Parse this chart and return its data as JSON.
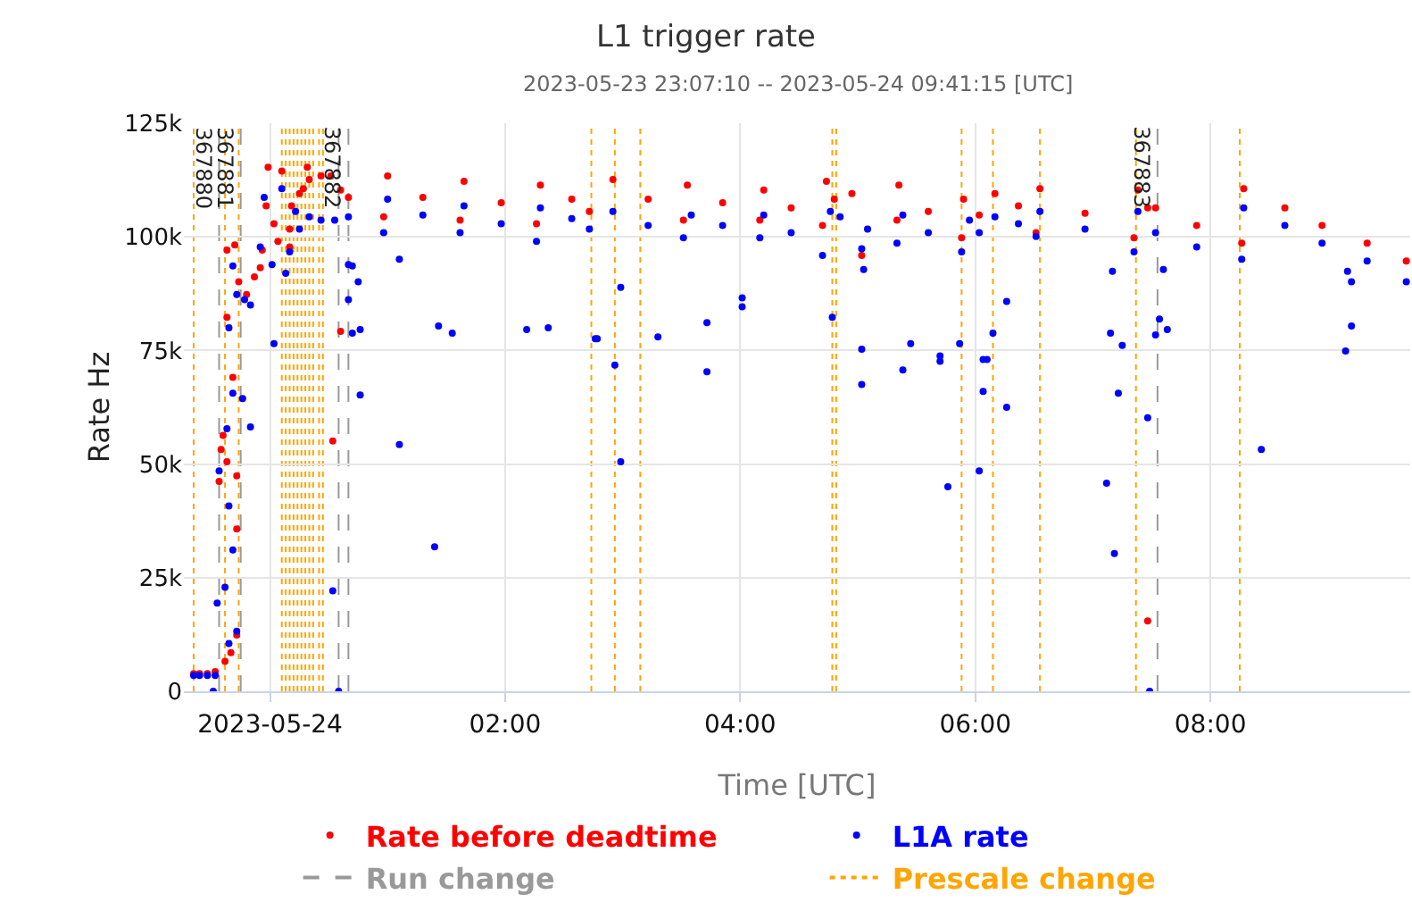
{
  "chart_data": {
    "type": "scatter",
    "title": "L1 trigger rate",
    "subtitle": "2023-05-23 23:07:10 -- 2023-05-24 09:41:15 [UTC]",
    "xlabel": "Time [UTC]",
    "ylabel": "Rate Hz",
    "xlim": [
      "2023-05-23T23:16",
      "2023-05-24T09:42"
    ],
    "xticks": [
      {
        "value": "2023-05-24T00:00",
        "label": "2023-05-24"
      },
      {
        "value": "2023-05-24T02:00",
        "label": "02:00"
      },
      {
        "value": "2023-05-24T04:00",
        "label": "04:00"
      },
      {
        "value": "2023-05-24T06:00",
        "label": "06:00"
      },
      {
        "value": "2023-05-24T08:00",
        "label": "08:00"
      }
    ],
    "ylim": [
      0,
      125000
    ],
    "yticks": [
      {
        "value": 0,
        "label": "0"
      },
      {
        "value": 25000,
        "label": "25k"
      },
      {
        "value": 50000,
        "label": "50k"
      },
      {
        "value": 75000,
        "label": "75k"
      },
      {
        "value": 100000,
        "label": "100k"
      },
      {
        "value": 125000,
        "label": "125k"
      }
    ],
    "grid": true,
    "legend": "bottom",
    "marker": "circle",
    "series": [
      {
        "name": "Rate before deadtime",
        "color": "#ff0000",
        "x": [
          "2023-05-23T23:21",
          "2023-05-23T23:24",
          "2023-05-23T23:28",
          "2023-05-23T23:32",
          "2023-05-23T23:37",
          "2023-05-23T23:40",
          "2023-05-23T23:43",
          "2023-05-23T23:34",
          "2023-05-23T23:35",
          "2023-05-23T23:36",
          "2023-05-23T23:38",
          "2023-05-23T23:43",
          "2023-05-23T23:43",
          "2023-05-23T23:41",
          "2023-05-23T23:38",
          "2023-05-23T23:38",
          "2023-05-23T23:42",
          "2023-05-23T23:44",
          "2023-05-23T23:48",
          "2023-05-23T23:52",
          "2023-05-23T23:55",
          "2023-05-23T23:56",
          "2023-05-23T23:58",
          "2023-05-23T23:59",
          "2023-05-24T00:02",
          "2023-05-24T00:04",
          "2023-05-24T00:06",
          "2023-05-24T00:10",
          "2023-05-24T00:10",
          "2023-05-24T00:11",
          "2023-05-24T00:15",
          "2023-05-24T00:17",
          "2023-05-24T00:19",
          "2023-05-24T00:20",
          "2023-05-24T00:26",
          "2023-05-24T00:31",
          "2023-05-24T00:32",
          "2023-05-24T00:36",
          "2023-05-24T00:36",
          "2023-05-24T00:40",
          "2023-05-24T00:58",
          "2023-05-24T01:00",
          "2023-05-24T01:18",
          "2023-05-24T01:37",
          "2023-05-24T01:39",
          "2023-05-24T01:58",
          "2023-05-24T02:16",
          "2023-05-24T02:18",
          "2023-05-24T02:34",
          "2023-05-24T02:43",
          "2023-05-24T02:55",
          "2023-05-24T03:13",
          "2023-05-24T03:31",
          "2023-05-24T03:33",
          "2023-05-24T03:51",
          "2023-05-24T04:10",
          "2023-05-24T04:12",
          "2023-05-24T04:26",
          "2023-05-24T04:42",
          "2023-05-24T04:44",
          "2023-05-24T04:48",
          "2023-05-24T04:57",
          "2023-05-24T05:02",
          "2023-05-24T05:20",
          "2023-05-24T05:21",
          "2023-05-24T05:36",
          "2023-05-24T05:53",
          "2023-05-24T05:54",
          "2023-05-24T06:02",
          "2023-05-24T06:10",
          "2023-05-24T06:22",
          "2023-05-24T06:31",
          "2023-05-24T06:33",
          "2023-05-24T06:56",
          "2023-05-24T07:21",
          "2023-05-24T07:23",
          "2023-05-24T07:28",
          "2023-05-24T07:28",
          "2023-05-24T07:32",
          "2023-05-24T07:53",
          "2023-05-24T08:16",
          "2023-05-24T08:17",
          "2023-05-24T08:38",
          "2023-05-24T08:57",
          "2023-05-24T09:20",
          "2023-05-24T09:40"
        ],
        "values": [
          3900,
          3900,
          3900,
          4300,
          6600,
          8500,
          12400,
          46200,
          53200,
          56300,
          50500,
          47400,
          35700,
          69100,
          82300,
          97100,
          98200,
          90100,
          87300,
          91200,
          93200,
          97100,
          106800,
          115300,
          102900,
          99000,
          114500,
          97800,
          101700,
          106800,
          109500,
          110600,
          115300,
          112600,
          113400,
          113400,
          55100,
          110300,
          79200,
          108700,
          104400,
          113400,
          108700,
          103700,
          112200,
          107500,
          102900,
          111400,
          108300,
          105600,
          112600,
          108300,
          103700,
          111400,
          107500,
          103700,
          110300,
          106400,
          102500,
          112200,
          108300,
          109500,
          95900,
          103700,
          111400,
          105600,
          99800,
          108300,
          104800,
          109500,
          106800,
          100900,
          110600,
          105200,
          99800,
          110300,
          106400,
          15500,
          106400,
          102500,
          98600,
          110600,
          106400,
          102500,
          98600,
          94700
        ]
      },
      {
        "name": "L1A rate",
        "color": "#0000ff",
        "x": [
          "2023-05-23T23:21",
          "2023-05-23T23:24",
          "2023-05-23T23:28",
          "2023-05-23T23:32",
          "2023-05-23T23:31",
          "2023-05-23T23:33",
          "2023-05-23T23:34",
          "2023-05-23T23:38",
          "2023-05-23T23:37",
          "2023-05-23T23:39",
          "2023-05-23T23:43",
          "2023-05-23T23:41",
          "2023-05-23T23:39",
          "2023-05-23T23:41",
          "2023-05-23T23:46",
          "2023-05-23T23:50",
          "2023-05-23T23:39",
          "2023-05-23T23:41",
          "2023-05-23T23:43",
          "2023-05-23T23:47",
          "2023-05-23T23:50",
          "2023-05-23T23:55",
          "2023-05-23T23:57",
          "2023-05-24T00:02",
          "2023-05-24T00:01",
          "2023-05-24T00:08",
          "2023-05-24T00:06",
          "2023-05-24T00:10",
          "2023-05-24T00:13",
          "2023-05-24T00:15",
          "2023-05-24T00:20",
          "2023-05-24T00:26",
          "2023-05-24T00:33",
          "2023-05-24T00:32",
          "2023-05-24T00:35",
          "2023-05-24T00:40",
          "2023-05-24T00:42",
          "2023-05-24T00:45",
          "2023-05-24T00:40",
          "2023-05-24T00:42",
          "2023-05-24T00:46",
          "2023-05-24T00:46",
          "2023-05-24T01:06",
          "2023-05-24T01:06",
          "2023-05-24T01:26",
          "2023-05-24T01:33",
          "2023-05-24T01:24",
          "2023-05-24T02:11",
          "2023-05-24T02:22",
          "2023-05-24T02:46",
          "2023-05-24T00:40",
          "2023-05-24T00:58",
          "2023-05-24T01:00",
          "2023-05-24T01:18",
          "2023-05-24T01:37",
          "2023-05-24T01:39",
          "2023-05-24T01:58",
          "2023-05-24T02:16",
          "2023-05-24T02:18",
          "2023-05-24T02:34",
          "2023-05-24T02:43",
          "2023-05-24T02:55",
          "2023-05-24T03:13",
          "2023-05-24T03:31",
          "2023-05-24T03:35",
          "2023-05-24T03:51",
          "2023-05-24T04:10",
          "2023-05-24T04:12",
          "2023-05-24T04:26",
          "2023-05-24T04:42",
          "2023-05-24T04:46",
          "2023-05-24T04:51",
          "2023-05-24T05:05",
          "2023-05-24T05:20",
          "2023-05-24T05:23",
          "2023-05-24T05:36",
          "2023-05-24T05:53",
          "2023-05-24T05:57",
          "2023-05-24T06:02",
          "2023-05-24T06:10",
          "2023-05-24T06:22",
          "2023-05-24T06:31",
          "2023-05-24T06:33",
          "2023-05-24T06:56",
          "2023-05-24T07:21",
          "2023-05-24T07:23",
          "2023-05-24T07:32",
          "2023-05-24T07:53",
          "2023-05-24T08:16",
          "2023-05-24T08:17",
          "2023-05-24T08:38",
          "2023-05-24T08:57",
          "2023-05-24T09:20",
          "2023-05-24T09:40",
          "2023-05-24T02:47",
          "2023-05-24T02:56",
          "2023-05-24T02:59",
          "2023-05-24T02:59",
          "2023-05-24T03:18",
          "2023-05-24T03:43",
          "2023-05-24T03:43",
          "2023-05-24T04:01",
          "2023-05-24T04:01",
          "2023-05-24T04:47",
          "2023-05-24T05:02",
          "2023-05-24T05:03",
          "2023-05-24T05:02",
          "2023-05-24T05:02",
          "2023-05-24T05:23",
          "2023-05-24T05:27",
          "2023-05-24T05:42",
          "2023-05-24T05:42",
          "2023-05-24T05:46",
          "2023-05-24T05:52",
          "2023-05-24T06:02",
          "2023-05-24T06:04",
          "2023-05-24T06:06",
          "2023-05-24T06:04",
          "2023-05-24T06:09",
          "2023-05-24T06:16",
          "2023-05-24T06:16",
          "2023-05-24T07:09",
          "2023-05-24T07:15",
          "2023-05-24T07:13",
          "2023-05-24T07:07",
          "2023-05-24T07:11",
          "2023-05-24T07:10",
          "2023-05-24T07:28",
          "2023-05-24T07:29",
          "2023-05-24T07:36",
          "2023-05-24T07:34",
          "2023-05-24T07:32",
          "2023-05-24T07:38",
          "2023-05-24T08:26",
          "2023-05-24T09:09",
          "2023-05-24T09:12",
          "2023-05-24T09:10",
          "2023-05-24T09:12"
        ],
        "values": [
          3500,
          3500,
          3500,
          3500,
          0,
          19400,
          48500,
          57800,
          22900,
          10500,
          13200,
          31100,
          40800,
          65600,
          64400,
          58200,
          80000,
          93600,
          87300,
          86200,
          85000,
          97800,
          108700,
          76500,
          93900,
          92000,
          110600,
          96700,
          105600,
          101700,
          104400,
          103700,
          103700,
          22100,
          0,
          93900,
          93600,
          90100,
          86200,
          78800,
          79600,
          65200,
          95100,
          54300,
          80400,
          78800,
          31800,
          79600,
          80000,
          77600,
          104400,
          100900,
          108300,
          104800,
          100900,
          106800,
          102900,
          99000,
          106400,
          104000,
          101700,
          105600,
          102500,
          99800,
          104800,
          102500,
          99800,
          104800,
          100900,
          95900,
          105600,
          104400,
          101700,
          98600,
          104800,
          100900,
          96700,
          103700,
          100900,
          104400,
          102900,
          100100,
          105600,
          101700,
          96700,
          105600,
          100900,
          97800,
          95100,
          106400,
          102500,
          98600,
          94700,
          90100,
          77600,
          71800,
          88900,
          50500,
          78000,
          81100,
          70300,
          86600,
          84600,
          82300,
          97400,
          92800,
          75300,
          67500,
          70700,
          76500,
          73800,
          72600,
          45000,
          76500,
          48500,
          73000,
          73000,
          66000,
          78800,
          85800,
          62500,
          78800,
          76100,
          65600,
          45800,
          30300,
          92400,
          60200,
          0,
          92800,
          81900,
          78400,
          79600,
          53200,
          74900,
          80400,
          92400,
          90100
        ]
      }
    ],
    "ref_lines": [
      {
        "axis": "x",
        "value": "2023-05-23T23:34",
        "label": "367880",
        "color": "#999999",
        "line_style": "dashed"
      },
      {
        "axis": "x",
        "value": "2023-05-23T23:45",
        "label": "367881",
        "color": "#999999",
        "line_style": "dashed"
      },
      {
        "axis": "x",
        "value": "2023-05-24T00:35",
        "color": "#999999",
        "line_style": "dashed"
      },
      {
        "axis": "x",
        "value": "2023-05-24T00:40",
        "label": "367882",
        "color": "#999999",
        "line_style": "dashed"
      },
      {
        "axis": "x",
        "value": "2023-05-24T07:33",
        "label": "367883",
        "color": "#999999",
        "line_style": "dashed"
      },
      {
        "axis": "x",
        "value": "2023-05-23T23:21",
        "color": "#ffa500",
        "line_style": "dotted"
      },
      {
        "axis": "x",
        "value": "2023-05-23T23:37",
        "color": "#ffa500",
        "line_style": "dotted"
      },
      {
        "axis": "x",
        "value": "2023-05-23T23:44",
        "color": "#ffa500",
        "line_style": "dotted"
      },
      {
        "axis": "x",
        "value": "2023-05-24T00:06",
        "color": "#ffa500",
        "line_style": "dotted"
      },
      {
        "axis": "x",
        "value": "2023-05-24T00:08",
        "color": "#ffa500",
        "line_style": "dotted"
      },
      {
        "axis": "x",
        "value": "2023-05-24T00:10",
        "color": "#ffa500",
        "line_style": "dotted"
      },
      {
        "axis": "x",
        "value": "2023-05-24T00:12",
        "color": "#ffa500",
        "line_style": "dotted"
      },
      {
        "axis": "x",
        "value": "2023-05-24T00:14",
        "color": "#ffa500",
        "line_style": "dotted"
      },
      {
        "axis": "x",
        "value": "2023-05-24T00:16",
        "color": "#ffa500",
        "line_style": "dotted"
      },
      {
        "axis": "x",
        "value": "2023-05-24T00:18",
        "color": "#ffa500",
        "line_style": "dotted"
      },
      {
        "axis": "x",
        "value": "2023-05-24T00:20",
        "color": "#ffa500",
        "line_style": "dotted"
      },
      {
        "axis": "x",
        "value": "2023-05-24T00:22",
        "color": "#ffa500",
        "line_style": "dotted"
      },
      {
        "axis": "x",
        "value": "2023-05-24T00:25",
        "color": "#ffa500",
        "line_style": "dotted"
      },
      {
        "axis": "x",
        "value": "2023-05-24T00:27",
        "color": "#ffa500",
        "line_style": "dotted"
      },
      {
        "axis": "x",
        "value": "2023-05-24T02:44",
        "color": "#ffa500",
        "line_style": "dotted"
      },
      {
        "axis": "x",
        "value": "2023-05-24T02:56",
        "color": "#ffa500",
        "line_style": "dotted"
      },
      {
        "axis": "x",
        "value": "2023-05-24T03:09",
        "color": "#ffa500",
        "line_style": "dotted"
      },
      {
        "axis": "x",
        "value": "2023-05-24T04:47",
        "color": "#ffa500",
        "line_style": "dotted"
      },
      {
        "axis": "x",
        "value": "2023-05-24T04:49",
        "color": "#ffa500",
        "line_style": "dotted"
      },
      {
        "axis": "x",
        "value": "2023-05-24T05:53",
        "color": "#ffa500",
        "line_style": "dotted"
      },
      {
        "axis": "x",
        "value": "2023-05-24T06:09",
        "color": "#ffa500",
        "line_style": "dotted"
      },
      {
        "axis": "x",
        "value": "2023-05-24T06:33",
        "color": "#ffa500",
        "line_style": "dotted"
      },
      {
        "axis": "x",
        "value": "2023-05-24T07:22",
        "color": "#ffa500",
        "line_style": "dotted"
      },
      {
        "axis": "x",
        "value": "2023-05-24T08:15",
        "color": "#ffa500",
        "line_style": "dotted"
      }
    ],
    "annotations": [
      "Run change",
      "Prescale change"
    ]
  }
}
